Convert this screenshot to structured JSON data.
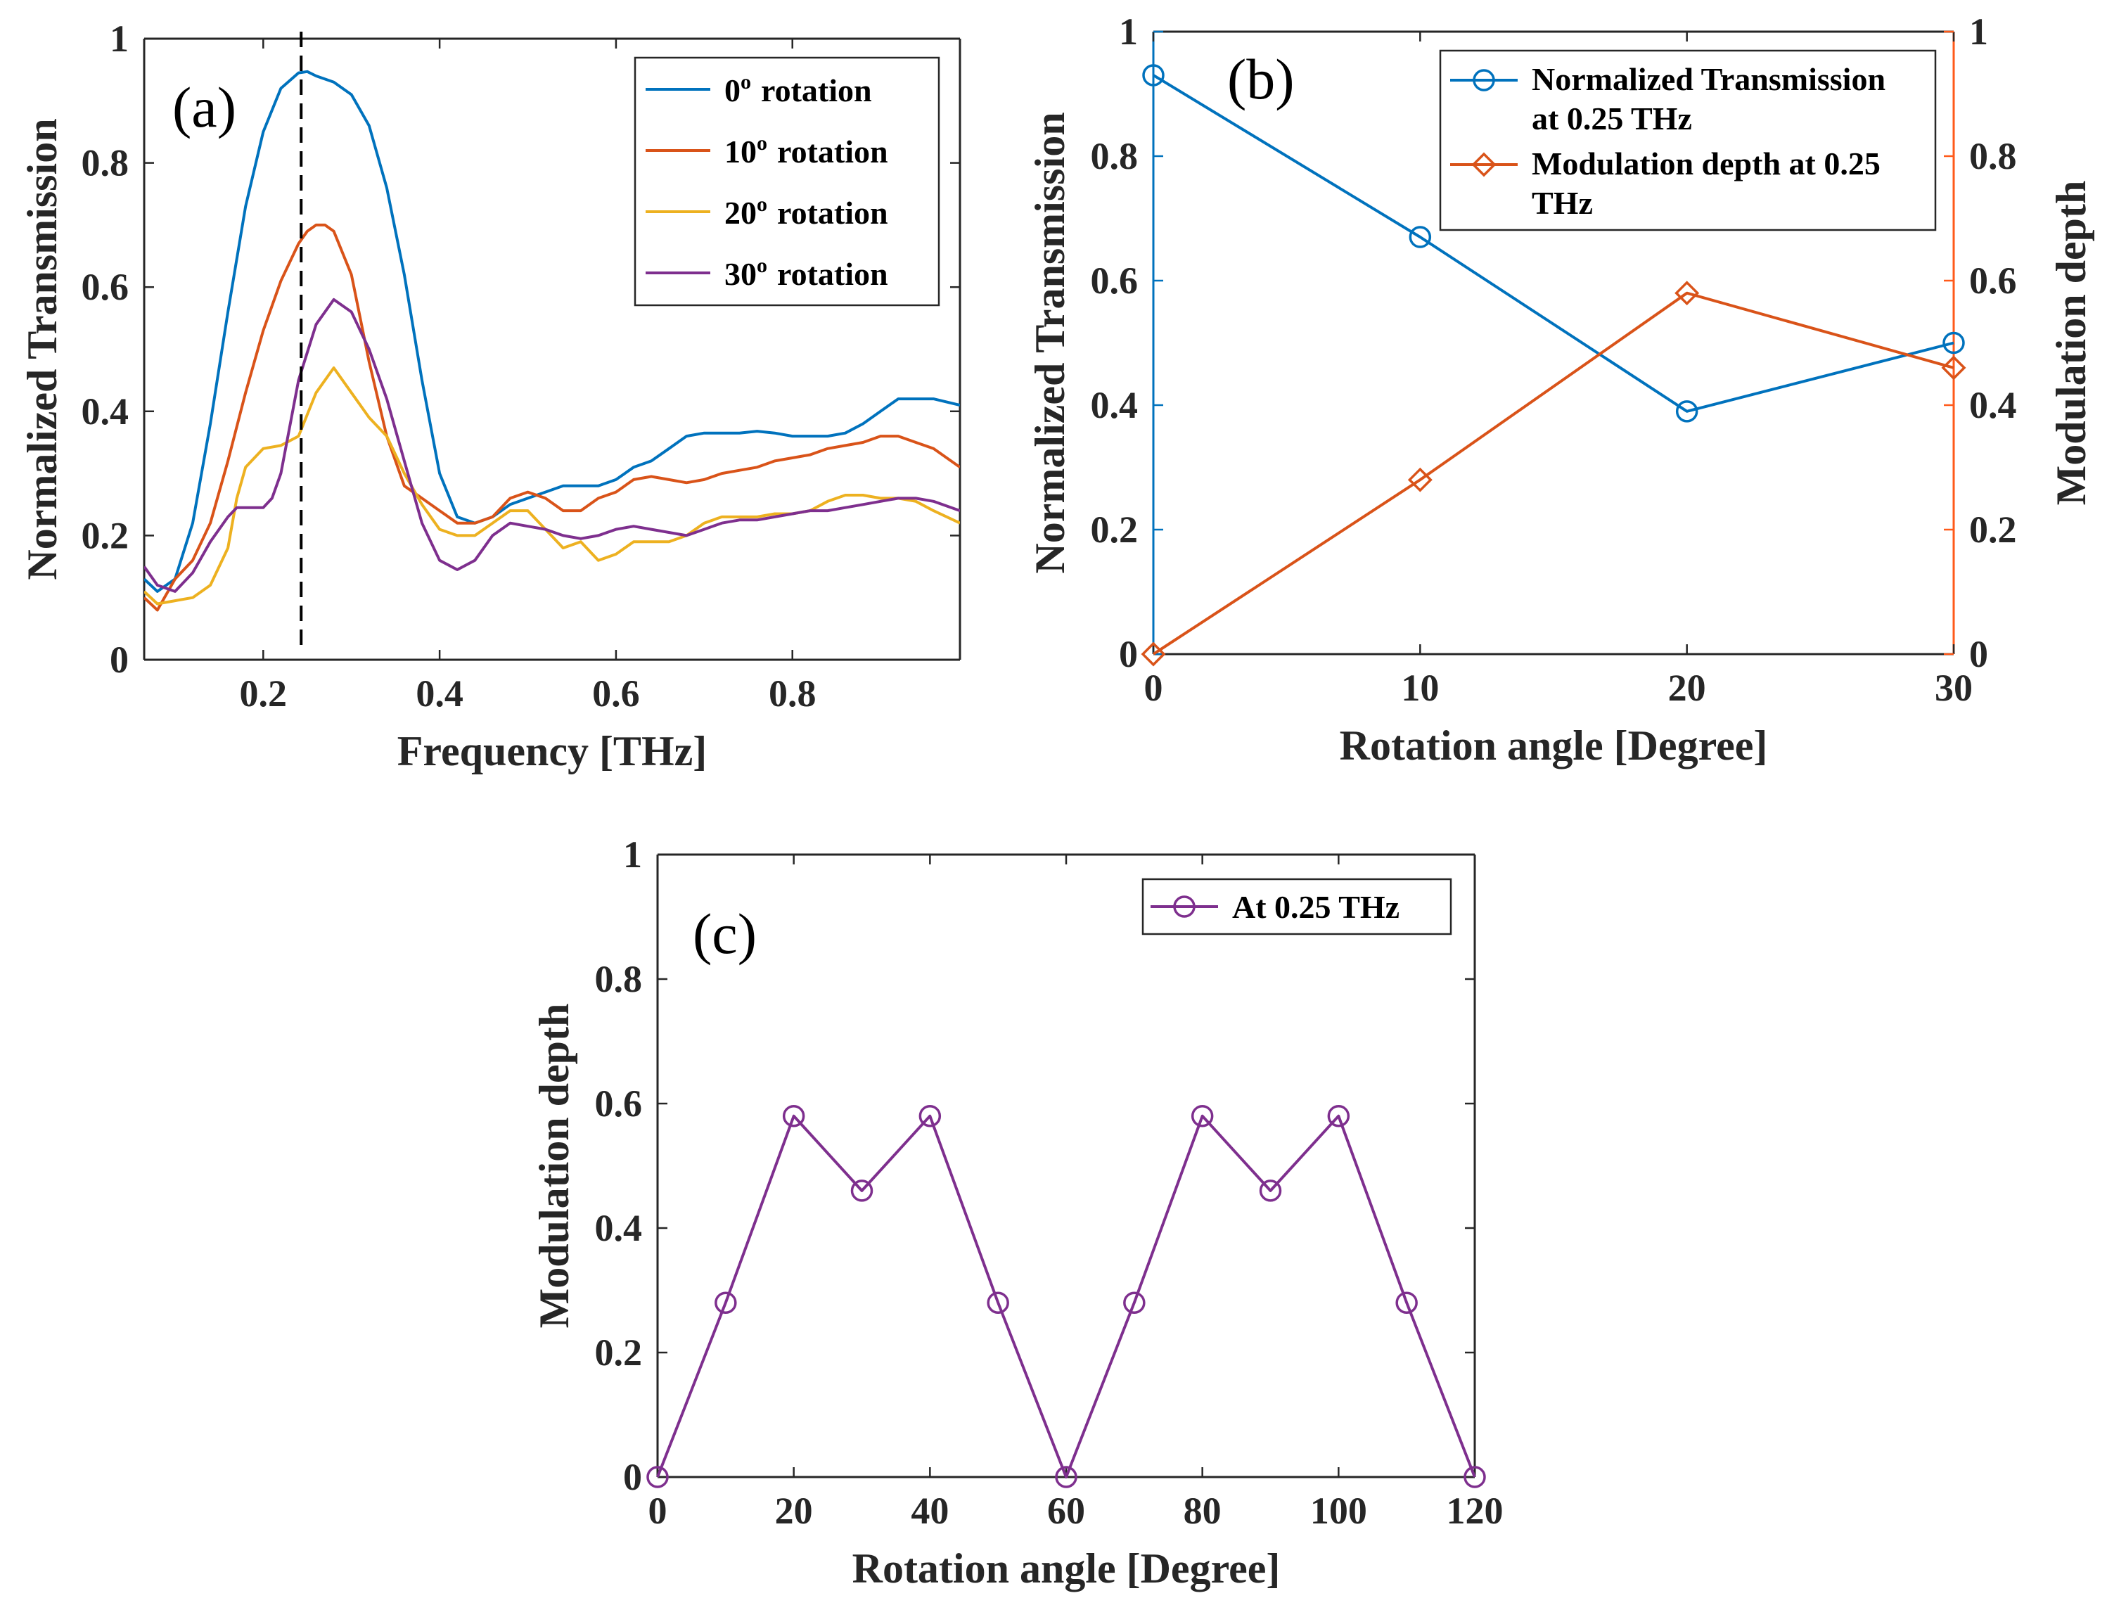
{
  "colors": {
    "blue": "#0072BD",
    "orange": "#D95319",
    "orange_axis": "#FF5A1A",
    "yellow": "#EDB120",
    "purple": "#7E2F8E",
    "black": "#000000",
    "axis": "#262626"
  },
  "chart_data": [
    {
      "id": "a",
      "type": "line",
      "panel_label": "(a)",
      "xlabel": "Frequency [THz]",
      "ylabel": "Normalized Transmission",
      "xlim": [
        0.065,
        0.99
      ],
      "ylim": [
        0,
        1
      ],
      "xticks": [
        0.2,
        0.4,
        0.6,
        0.8
      ],
      "xtick_labels": [
        "0.2",
        "0.4",
        "0.6",
        "0.8"
      ],
      "yticks": [
        0,
        0.2,
        0.4,
        0.6,
        0.8,
        1
      ],
      "ytick_labels": [
        "0",
        "0.2",
        "0.4",
        "0.6",
        "0.8",
        "1"
      ],
      "legend_position": "top-right",
      "reference_line": {
        "x": 0.243,
        "style": "dashed",
        "color": "#000000"
      },
      "series": [
        {
          "name": "0",
          "label_suffix": "rotation",
          "label_sup": "o",
          "color": "#0072BD",
          "x": [
            0.065,
            0.08,
            0.1,
            0.12,
            0.14,
            0.16,
            0.18,
            0.2,
            0.22,
            0.24,
            0.25,
            0.26,
            0.28,
            0.3,
            0.32,
            0.34,
            0.36,
            0.38,
            0.4,
            0.42,
            0.44,
            0.46,
            0.48,
            0.5,
            0.52,
            0.54,
            0.56,
            0.58,
            0.6,
            0.62,
            0.64,
            0.66,
            0.68,
            0.7,
            0.72,
            0.74,
            0.76,
            0.78,
            0.8,
            0.82,
            0.84,
            0.86,
            0.88,
            0.9,
            0.92,
            0.94,
            0.96,
            0.99
          ],
          "y": [
            0.13,
            0.11,
            0.13,
            0.22,
            0.38,
            0.56,
            0.73,
            0.85,
            0.92,
            0.945,
            0.947,
            0.94,
            0.93,
            0.91,
            0.86,
            0.76,
            0.62,
            0.45,
            0.3,
            0.23,
            0.22,
            0.23,
            0.25,
            0.26,
            0.27,
            0.28,
            0.28,
            0.28,
            0.29,
            0.31,
            0.32,
            0.34,
            0.36,
            0.365,
            0.365,
            0.365,
            0.368,
            0.365,
            0.36,
            0.36,
            0.36,
            0.365,
            0.38,
            0.4,
            0.42,
            0.42,
            0.42,
            0.41
          ]
        },
        {
          "name": "10",
          "label_suffix": "rotation",
          "label_sup": "o",
          "color": "#D95319",
          "x": [
            0.065,
            0.08,
            0.1,
            0.12,
            0.14,
            0.16,
            0.18,
            0.2,
            0.22,
            0.24,
            0.25,
            0.26,
            0.27,
            0.28,
            0.3,
            0.32,
            0.34,
            0.36,
            0.38,
            0.4,
            0.42,
            0.44,
            0.46,
            0.48,
            0.5,
            0.52,
            0.54,
            0.56,
            0.58,
            0.6,
            0.62,
            0.64,
            0.66,
            0.68,
            0.7,
            0.72,
            0.74,
            0.76,
            0.78,
            0.8,
            0.82,
            0.84,
            0.86,
            0.88,
            0.9,
            0.92,
            0.94,
            0.96,
            0.99
          ],
          "y": [
            0.1,
            0.08,
            0.13,
            0.16,
            0.22,
            0.32,
            0.43,
            0.53,
            0.61,
            0.67,
            0.69,
            0.7,
            0.7,
            0.69,
            0.62,
            0.48,
            0.36,
            0.28,
            0.26,
            0.24,
            0.22,
            0.22,
            0.23,
            0.26,
            0.27,
            0.26,
            0.24,
            0.24,
            0.26,
            0.27,
            0.29,
            0.295,
            0.29,
            0.285,
            0.29,
            0.3,
            0.305,
            0.31,
            0.32,
            0.325,
            0.33,
            0.34,
            0.345,
            0.35,
            0.36,
            0.36,
            0.35,
            0.34,
            0.31
          ]
        },
        {
          "name": "20",
          "label_suffix": "rotation",
          "label_sup": "o",
          "color": "#EDB120",
          "x": [
            0.065,
            0.08,
            0.1,
            0.12,
            0.14,
            0.16,
            0.17,
            0.18,
            0.2,
            0.22,
            0.24,
            0.26,
            0.28,
            0.3,
            0.32,
            0.34,
            0.36,
            0.38,
            0.4,
            0.42,
            0.44,
            0.46,
            0.48,
            0.5,
            0.52,
            0.54,
            0.56,
            0.58,
            0.6,
            0.62,
            0.64,
            0.66,
            0.68,
            0.7,
            0.72,
            0.74,
            0.76,
            0.78,
            0.8,
            0.82,
            0.84,
            0.86,
            0.88,
            0.9,
            0.92,
            0.94,
            0.96,
            0.99
          ],
          "y": [
            0.11,
            0.09,
            0.095,
            0.1,
            0.12,
            0.18,
            0.26,
            0.31,
            0.34,
            0.345,
            0.36,
            0.43,
            0.47,
            0.43,
            0.39,
            0.36,
            0.3,
            0.25,
            0.21,
            0.2,
            0.2,
            0.22,
            0.24,
            0.24,
            0.21,
            0.18,
            0.19,
            0.16,
            0.17,
            0.19,
            0.19,
            0.19,
            0.2,
            0.22,
            0.23,
            0.23,
            0.23,
            0.235,
            0.235,
            0.24,
            0.255,
            0.265,
            0.265,
            0.26,
            0.26,
            0.255,
            0.24,
            0.22
          ]
        },
        {
          "name": "30",
          "label_suffix": "rotation",
          "label_sup": "o",
          "color": "#7E2F8E",
          "x": [
            0.065,
            0.08,
            0.1,
            0.12,
            0.14,
            0.16,
            0.17,
            0.18,
            0.2,
            0.21,
            0.22,
            0.24,
            0.26,
            0.28,
            0.3,
            0.32,
            0.34,
            0.36,
            0.38,
            0.4,
            0.42,
            0.44,
            0.46,
            0.48,
            0.5,
            0.52,
            0.54,
            0.56,
            0.58,
            0.6,
            0.62,
            0.64,
            0.66,
            0.68,
            0.7,
            0.72,
            0.74,
            0.76,
            0.78,
            0.8,
            0.82,
            0.84,
            0.86,
            0.88,
            0.9,
            0.92,
            0.94,
            0.96,
            0.99
          ],
          "y": [
            0.15,
            0.12,
            0.11,
            0.14,
            0.19,
            0.23,
            0.245,
            0.245,
            0.245,
            0.26,
            0.3,
            0.45,
            0.54,
            0.58,
            0.56,
            0.5,
            0.42,
            0.32,
            0.22,
            0.16,
            0.145,
            0.16,
            0.2,
            0.22,
            0.215,
            0.21,
            0.2,
            0.195,
            0.2,
            0.21,
            0.215,
            0.21,
            0.205,
            0.2,
            0.21,
            0.22,
            0.225,
            0.225,
            0.23,
            0.235,
            0.24,
            0.24,
            0.245,
            0.25,
            0.255,
            0.26,
            0.26,
            0.255,
            0.24
          ]
        }
      ]
    },
    {
      "id": "b",
      "type": "line",
      "panel_label": "(b)",
      "xlabel": "Rotation angle [Degree]",
      "ylabel_left": "Normalized Transmission",
      "ylabel_right": "Modulation depth",
      "xlim": [
        0,
        30
      ],
      "ylim_left": [
        0,
        1
      ],
      "ylim_right": [
        0,
        1
      ],
      "xticks": [
        0,
        10,
        20,
        30
      ],
      "xtick_labels": [
        "0",
        "10",
        "20",
        "30"
      ],
      "yticks": [
        0,
        0.2,
        0.4,
        0.6,
        0.8,
        1
      ],
      "ytick_labels": [
        "0",
        "0.2",
        "0.4",
        "0.6",
        "0.8",
        "1"
      ],
      "legend_position": "top-right",
      "series": [
        {
          "name_lines": [
            "Normalized Transmission",
            "at 0.25 THz"
          ],
          "axis": "left",
          "marker": "circle",
          "color": "#0072BD",
          "x": [
            0,
            10,
            20,
            30
          ],
          "y": [
            0.93,
            0.67,
            0.39,
            0.5
          ]
        },
        {
          "name_lines": [
            "Modulation depth at 0.25",
            "THz"
          ],
          "axis": "right",
          "marker": "diamond",
          "color": "#D95319",
          "x": [
            0,
            10,
            20,
            30
          ],
          "y": [
            0,
            0.28,
            0.58,
            0.46
          ]
        }
      ]
    },
    {
      "id": "c",
      "type": "line",
      "panel_label": "(c)",
      "xlabel": "Rotation angle [Degree]",
      "ylabel": "Modulation depth",
      "xlim": [
        0,
        120
      ],
      "ylim": [
        0,
        1
      ],
      "xticks": [
        0,
        20,
        40,
        60,
        80,
        100,
        120
      ],
      "xtick_labels": [
        "0",
        "20",
        "40",
        "60",
        "80",
        "100",
        "120"
      ],
      "yticks": [
        0,
        0.2,
        0.4,
        0.6,
        0.8,
        1
      ],
      "ytick_labels": [
        "0",
        "0.2",
        "0.4",
        "0.6",
        "0.8",
        "1"
      ],
      "legend_position": "top-right",
      "series": [
        {
          "name": "At 0.25 THz",
          "marker": "circle",
          "color": "#7E2F8E",
          "x": [
            0,
            10,
            20,
            30,
            40,
            50,
            60,
            70,
            80,
            90,
            100,
            110,
            120
          ],
          "y": [
            0,
            0.28,
            0.58,
            0.46,
            0.58,
            0.28,
            0,
            0.28,
            0.58,
            0.46,
            0.58,
            0.28,
            0
          ]
        }
      ]
    }
  ]
}
